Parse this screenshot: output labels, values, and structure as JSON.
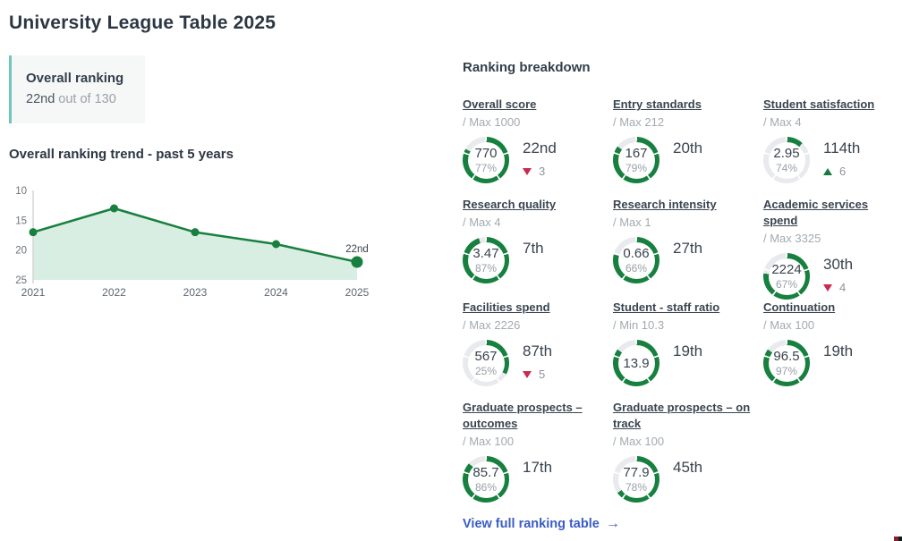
{
  "page": {
    "title": "University League Table 2025"
  },
  "overall_ranking_card": {
    "title": "Overall ranking",
    "rank": "22nd",
    "suffix": "out of 130"
  },
  "chart_data": {
    "type": "area",
    "title": "Overall ranking trend - past 5 years",
    "x": [
      "2021",
      "2022",
      "2023",
      "2024",
      "2025"
    ],
    "values": [
      17,
      13,
      17,
      19,
      22
    ],
    "y_ticks": [
      10,
      15,
      20,
      25
    ],
    "ylim": [
      10,
      25
    ],
    "y_axis_inverted": true,
    "grid": false,
    "annotation_label": "22nd",
    "line_color": "#17803f",
    "point_color": "#17803f",
    "fill_color": "#d9eee2",
    "axis_color": "#d4d6d8",
    "tick_color": "#6d747b",
    "xlabel_color": "#5d666f"
  },
  "breakdown": {
    "heading": "Ranking breakdown",
    "total_label": "130",
    "metrics": [
      {
        "title": "Overall score",
        "max_label": "/ Max 1000",
        "value": "770",
        "pct": "77%",
        "rank": "22nd",
        "change_dir": "down",
        "change_amount": "3",
        "ring_fill_pct": 83
      },
      {
        "title": "Entry standards",
        "max_label": "/ Max 212",
        "value": "167",
        "pct": "79%",
        "rank": "20th",
        "change_dir": null,
        "change_amount": null,
        "ring_fill_pct": 85
      },
      {
        "title": "Student satisfaction",
        "max_label": "/ Max 4",
        "value": "2.95",
        "pct": "74%",
        "rank": "114th",
        "change_dir": "up",
        "change_amount": "6",
        "ring_fill_pct": 12
      },
      {
        "title": "Research quality",
        "max_label": "/ Max 4",
        "value": "3.47",
        "pct": "87%",
        "rank": "7th",
        "change_dir": null,
        "change_amount": null,
        "ring_fill_pct": 95
      },
      {
        "title": "Research intensity",
        "max_label": "/ Max 1",
        "value": "0.66",
        "pct": "66%",
        "rank": "27th",
        "change_dir": null,
        "change_amount": null,
        "ring_fill_pct": 79
      },
      {
        "title": "Academic services spend",
        "max_label": "/ Max 3325",
        "value": "2224",
        "pct": "67%",
        "rank": "30th",
        "change_dir": "down",
        "change_amount": "4",
        "ring_fill_pct": 77
      },
      {
        "title": "Facilities spend",
        "max_label": "/ Max 2226",
        "value": "567",
        "pct": "25%",
        "rank": "87th",
        "change_dir": "down",
        "change_amount": "5",
        "ring_fill_pct": 33
      },
      {
        "title": "Student - staff ratio",
        "max_label": "/ Min 10.3",
        "value": "13.9",
        "pct": null,
        "rank": "19th",
        "change_dir": null,
        "change_amount": null,
        "ring_fill_pct": 85
      },
      {
        "title": "Continuation",
        "max_label": "/ Max 100",
        "value": "96.5",
        "pct": "97%",
        "rank": "19th",
        "change_dir": null,
        "change_amount": null,
        "ring_fill_pct": 85
      },
      {
        "title": "Graduate prospects – outcomes",
        "max_label": "/ Max 100",
        "value": "85.7",
        "pct": "86%",
        "rank": "17th",
        "change_dir": null,
        "change_amount": null,
        "ring_fill_pct": 87
      },
      {
        "title": "Graduate prospects – on track",
        "max_label": "/ Max 100",
        "value": "77.9",
        "pct": "78%",
        "rank": "45th",
        "change_dir": null,
        "change_amount": null,
        "ring_fill_pct": 65
      }
    ]
  },
  "footer_link": {
    "label": "View full ranking table",
    "arrow": "→"
  },
  "colors": {
    "ring_green": "#17803f",
    "ring_gray": "#e8eaed",
    "down_red": "#c92a50",
    "up_green": "#177a41",
    "link_blue": "#3a5cc5",
    "card_accent_teal": "#6ec5ba"
  }
}
